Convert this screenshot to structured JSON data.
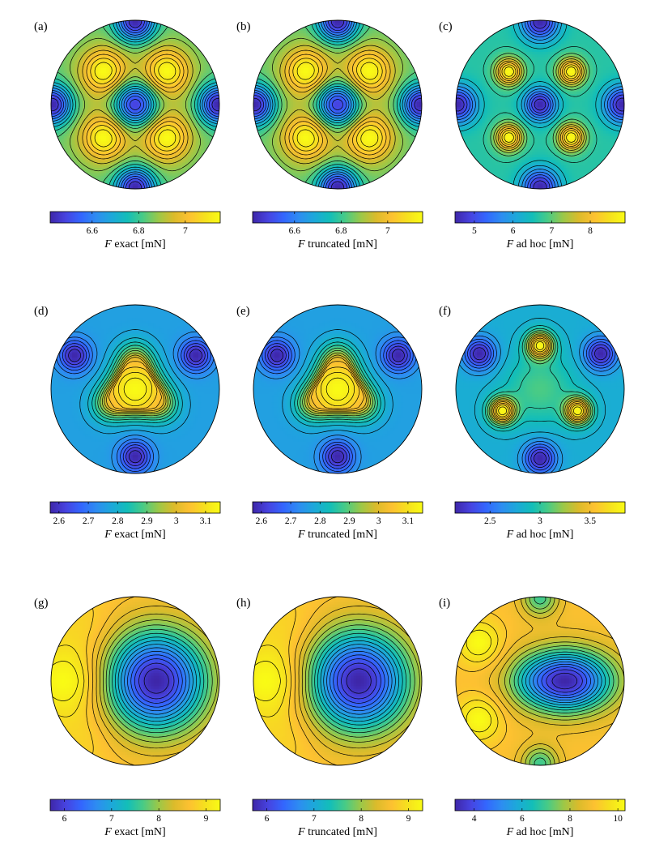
{
  "colormap": [
    "#3e26a8",
    "#4743e0",
    "#3366fe",
    "#2d8df1",
    "#1ca9d9",
    "#13beb8",
    "#48cb86",
    "#9bc848",
    "#dbbb2b",
    "#fdc131",
    "#f6e01e",
    "#f9fb15"
  ],
  "contour_color": "#000000",
  "chart_data": [
    {
      "panel": "(a)",
      "type": "heatmap",
      "quantity_label": "exact [mN]",
      "variable": "F",
      "colorbar": {
        "range": [
          6.42,
          7.15
        ],
        "ticks": [
          6.6,
          6.8,
          7
        ],
        "tick_labels": [
          "6.6",
          "6.8",
          "7"
        ]
      }
    },
    {
      "panel": "(b)",
      "type": "heatmap",
      "quantity_label": "truncated [mN]",
      "variable": "F",
      "colorbar": {
        "range": [
          6.42,
          7.15
        ],
        "ticks": [
          6.6,
          6.8,
          7
        ],
        "tick_labels": [
          "6.6",
          "6.8",
          "7"
        ]
      }
    },
    {
      "panel": "(c)",
      "type": "heatmap",
      "quantity_label": "ad hoc [mN]",
      "variable": "F",
      "colorbar": {
        "range": [
          4.5,
          8.9
        ],
        "ticks": [
          5,
          6,
          7,
          8
        ],
        "tick_labels": [
          "5",
          "6",
          "7",
          "8"
        ]
      }
    },
    {
      "panel": "(d)",
      "type": "heatmap",
      "quantity_label": "exact [mN]",
      "variable": "F",
      "colorbar": {
        "range": [
          2.57,
          3.15
        ],
        "ticks": [
          2.6,
          2.7,
          2.8,
          2.9,
          3,
          3.1
        ],
        "tick_labels": [
          "2.6",
          "2.7",
          "2.8",
          "2.9",
          "3",
          "3.1"
        ]
      }
    },
    {
      "panel": "(e)",
      "type": "heatmap",
      "quantity_label": "truncated [mN]",
      "variable": "F",
      "colorbar": {
        "range": [
          2.57,
          3.15
        ],
        "ticks": [
          2.6,
          2.7,
          2.8,
          2.9,
          3,
          3.1
        ],
        "tick_labels": [
          "2.6",
          "2.7",
          "2.8",
          "2.9",
          "3",
          "3.1"
        ]
      }
    },
    {
      "panel": "(f)",
      "type": "heatmap",
      "quantity_label": "ad hoc [mN]",
      "variable": "F",
      "colorbar": {
        "range": [
          2.15,
          3.85
        ],
        "ticks": [
          2.5,
          3,
          3.5
        ],
        "tick_labels": [
          "2.5",
          "3",
          "3.5"
        ]
      }
    },
    {
      "panel": "(g)",
      "type": "heatmap",
      "quantity_label": "exact [mN]",
      "variable": "F",
      "colorbar": {
        "range": [
          5.7,
          9.3
        ],
        "ticks": [
          6,
          7,
          8,
          9
        ],
        "tick_labels": [
          "6",
          "7",
          "8",
          "9"
        ]
      }
    },
    {
      "panel": "(h)",
      "type": "heatmap",
      "quantity_label": "truncated [mN]",
      "variable": "F",
      "colorbar": {
        "range": [
          5.7,
          9.3
        ],
        "ticks": [
          6,
          7,
          8,
          9
        ],
        "tick_labels": [
          "6",
          "7",
          "8",
          "9"
        ]
      }
    },
    {
      "panel": "(i)",
      "type": "heatmap",
      "quantity_label": "ad hoc [mN]",
      "variable": "F",
      "colorbar": {
        "range": [
          3.2,
          10.3
        ],
        "ticks": [
          4,
          6,
          8,
          10
        ],
        "tick_labels": [
          "4",
          "6",
          "8",
          "10"
        ]
      }
    }
  ]
}
